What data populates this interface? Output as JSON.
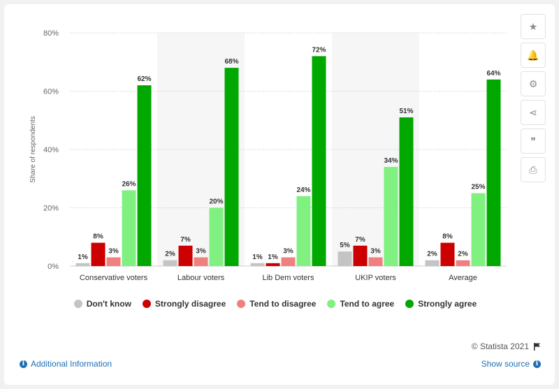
{
  "chart_data": {
    "type": "bar",
    "categories": [
      "Conservative voters",
      "Labour voters",
      "Lib Dem voters",
      "UKIP voters",
      "Average"
    ],
    "series": [
      {
        "name": "Don't know",
        "color": "#c4c4c4",
        "values": [
          1,
          2,
          1,
          5,
          2
        ]
      },
      {
        "name": "Strongly disagree",
        "color": "#cc0000",
        "values": [
          8,
          7,
          1,
          7,
          8
        ]
      },
      {
        "name": "Tend to disagree",
        "color": "#f08080",
        "values": [
          3,
          3,
          3,
          3,
          2
        ]
      },
      {
        "name": "Tend to agree",
        "color": "#80f080",
        "values": [
          26,
          20,
          24,
          34,
          25
        ]
      },
      {
        "name": "Strongly agree",
        "color": "#00a800",
        "values": [
          62,
          68,
          72,
          51,
          64
        ]
      }
    ],
    "ylabel": "Share of respondents",
    "ylim": [
      0,
      80
    ],
    "yticks": [
      0,
      20,
      40,
      60,
      80
    ],
    "tick_suffix": "%",
    "grid": true,
    "legend_position": "bottom"
  },
  "footer": {
    "copyright": "© Statista 2021",
    "additional_info": "Additional Information",
    "show_source": "Show source"
  },
  "tools": [
    {
      "name": "star-icon",
      "glyph": "★"
    },
    {
      "name": "bell-icon",
      "glyph": "🔔"
    },
    {
      "name": "gear-icon",
      "glyph": "⚙"
    },
    {
      "name": "share-icon",
      "glyph": "⋖"
    },
    {
      "name": "quote-icon",
      "glyph": "❞"
    },
    {
      "name": "print-icon",
      "glyph": "⎙"
    }
  ]
}
